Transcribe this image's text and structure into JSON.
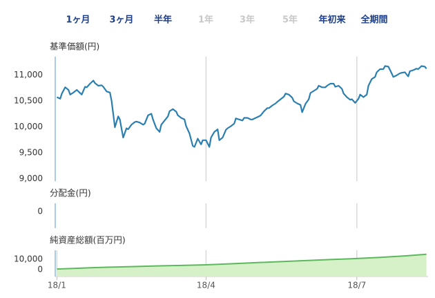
{
  "period_tabs": [
    {
      "label": "1ヶ月",
      "enabled": true
    },
    {
      "label": "3ヶ月",
      "enabled": true
    },
    {
      "label": "半年",
      "enabled": true
    },
    {
      "label": "1年",
      "enabled": false
    },
    {
      "label": "3年",
      "enabled": false
    },
    {
      "label": "5年",
      "enabled": false
    },
    {
      "label": "年初来",
      "enabled": true
    },
    {
      "label": "全期間",
      "enabled": true
    }
  ],
  "chart_data": [
    {
      "type": "line",
      "title": "基準価額(円)",
      "color": "#2a7fb0",
      "x": [
        0,
        2,
        3,
        5,
        7,
        8,
        10,
        12,
        13,
        15,
        17,
        18,
        20,
        22,
        23,
        25,
        27,
        28,
        30,
        32,
        33,
        35,
        37,
        38,
        40,
        42,
        43,
        45,
        47,
        48,
        50,
        52,
        53,
        55,
        57,
        58,
        60,
        62,
        63,
        65,
        67,
        68,
        70,
        72,
        73,
        75,
        77,
        78,
        80,
        82,
        83,
        85,
        87,
        88,
        90,
        92,
        93,
        95,
        97,
        98,
        100,
        102,
        103,
        105,
        107,
        108,
        110,
        112,
        113,
        115,
        117,
        118,
        120,
        122,
        123,
        125,
        127,
        128,
        130,
        132,
        133,
        135,
        137,
        138,
        140,
        142,
        143,
        145,
        147,
        148,
        150,
        152,
        153,
        155,
        157,
        158,
        160,
        162,
        163,
        165,
        167,
        168,
        170,
        172,
        173,
        175,
        177,
        178,
        180,
        182,
        183,
        185,
        187,
        188,
        190,
        192,
        193,
        195,
        197,
        198,
        200,
        202,
        203,
        205,
        207,
        208,
        210,
        212,
        213,
        215,
        217,
        218,
        220,
        222,
        223
      ],
      "values": [
        10570,
        10540,
        10640,
        10760,
        10710,
        10620,
        10660,
        10710,
        10680,
        10620,
        10770,
        10760,
        10830,
        10890,
        10840,
        10790,
        10800,
        10770,
        10680,
        10660,
        10500,
        9990,
        10200,
        10140,
        9790,
        9970,
        9950,
        10040,
        10090,
        10100,
        10080,
        10040,
        10060,
        10220,
        10250,
        10140,
        9970,
        9900,
        10040,
        10120,
        10200,
        10300,
        10340,
        10290,
        10220,
        10170,
        10140,
        10010,
        9870,
        9630,
        9610,
        9770,
        9660,
        9740,
        9740,
        9610,
        9790,
        9900,
        9950,
        9740,
        9790,
        9940,
        9970,
        10010,
        10060,
        10160,
        10140,
        10120,
        10170,
        10170,
        10140,
        10140,
        10170,
        10200,
        10220,
        10300,
        10360,
        10360,
        10410,
        10450,
        10480,
        10530,
        10580,
        10640,
        10620,
        10560,
        10490,
        10450,
        10420,
        10280,
        10440,
        10530,
        10650,
        10690,
        10730,
        10790,
        10760,
        10760,
        10790,
        10830,
        10830,
        10770,
        10790,
        10730,
        10640,
        10570,
        10520,
        10530,
        10460,
        10540,
        10620,
        10570,
        10620,
        10790,
        10920,
        10960,
        11050,
        11110,
        11110,
        11170,
        11160,
        11030,
        10960,
        10990,
        11030,
        11040,
        11050,
        10970,
        11070,
        11090,
        11120,
        11110,
        11170,
        11160,
        11120
      ],
      "xlim": [
        -1,
        224
      ],
      "xticks": [
        90,
        181
      ],
      "ylim": [
        8950,
        11350
      ],
      "yticks": [
        {
          "value": 9000,
          "label": "9,000"
        },
        {
          "value": 9500,
          "label": "9,500"
        },
        {
          "value": 10000,
          "label": "10,000"
        },
        {
          "value": 10500,
          "label": "10,500"
        },
        {
          "value": 11000,
          "label": "11,000"
        }
      ]
    },
    {
      "type": "bar",
      "title": "分配金(円)",
      "xlim": [
        -1,
        224
      ],
      "xticks": [
        90,
        181
      ],
      "ylim": [
        -2,
        1
      ],
      "yticks": [
        0
      ]
    },
    {
      "type": "area",
      "title": "純資産総額(百万円)",
      "color": "#5cb85c",
      "fill": "#d6f0c8",
      "x": [
        0,
        15,
        30,
        45,
        60,
        75,
        90,
        105,
        120,
        135,
        150,
        165,
        181,
        195,
        210,
        223
      ],
      "values": [
        700,
        1600,
        2400,
        3000,
        3600,
        4100,
        4700,
        5700,
        6700,
        7700,
        8700,
        9700,
        10700,
        11800,
        13200,
        14700
      ],
      "xlim": [
        -1,
        224
      ],
      "xticks": [
        {
          "value": 0,
          "label": "18/1"
        },
        {
          "value": 90,
          "label": "18/4"
        },
        {
          "value": 181,
          "label": "18/7"
        }
      ],
      "ylim": [
        -6500,
        18500
      ],
      "yticks": [
        0,
        {
          "value": 10000,
          "label": "10,000"
        }
      ]
    }
  ]
}
